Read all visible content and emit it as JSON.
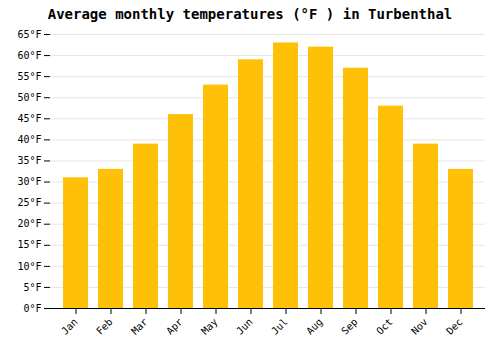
{
  "chart_data": {
    "type": "bar",
    "title": "Average monthly temperatures (°F ) in Turbenthal",
    "categories": [
      "Jan",
      "Feb",
      "Mar",
      "Apr",
      "May",
      "Jun",
      "Jul",
      "Aug",
      "Sep",
      "Oct",
      "Nov",
      "Dec"
    ],
    "values": [
      31,
      33,
      39,
      46,
      53,
      59,
      63,
      62,
      57,
      48,
      39,
      33
    ],
    "color": "#FFC107",
    "ylim": [
      0,
      65
    ],
    "yticks": [
      {
        "value": 0,
        "label": "0°F"
      },
      {
        "value": 5,
        "label": "5°F"
      },
      {
        "value": 10,
        "label": "10°F"
      },
      {
        "value": 15,
        "label": "15°F"
      },
      {
        "value": 20,
        "label": "20°F"
      },
      {
        "value": 25,
        "label": "25°F"
      },
      {
        "value": 30,
        "label": "30°F"
      },
      {
        "value": 35,
        "label": "35°F"
      },
      {
        "value": 40,
        "label": "40°F"
      },
      {
        "value": 45,
        "label": "45°F"
      },
      {
        "value": 50,
        "label": "50°F"
      },
      {
        "value": 55,
        "label": "55°F"
      },
      {
        "value": 60,
        "label": "60°F"
      },
      {
        "value": 65,
        "label": "65°F"
      }
    ],
    "grid": true
  }
}
